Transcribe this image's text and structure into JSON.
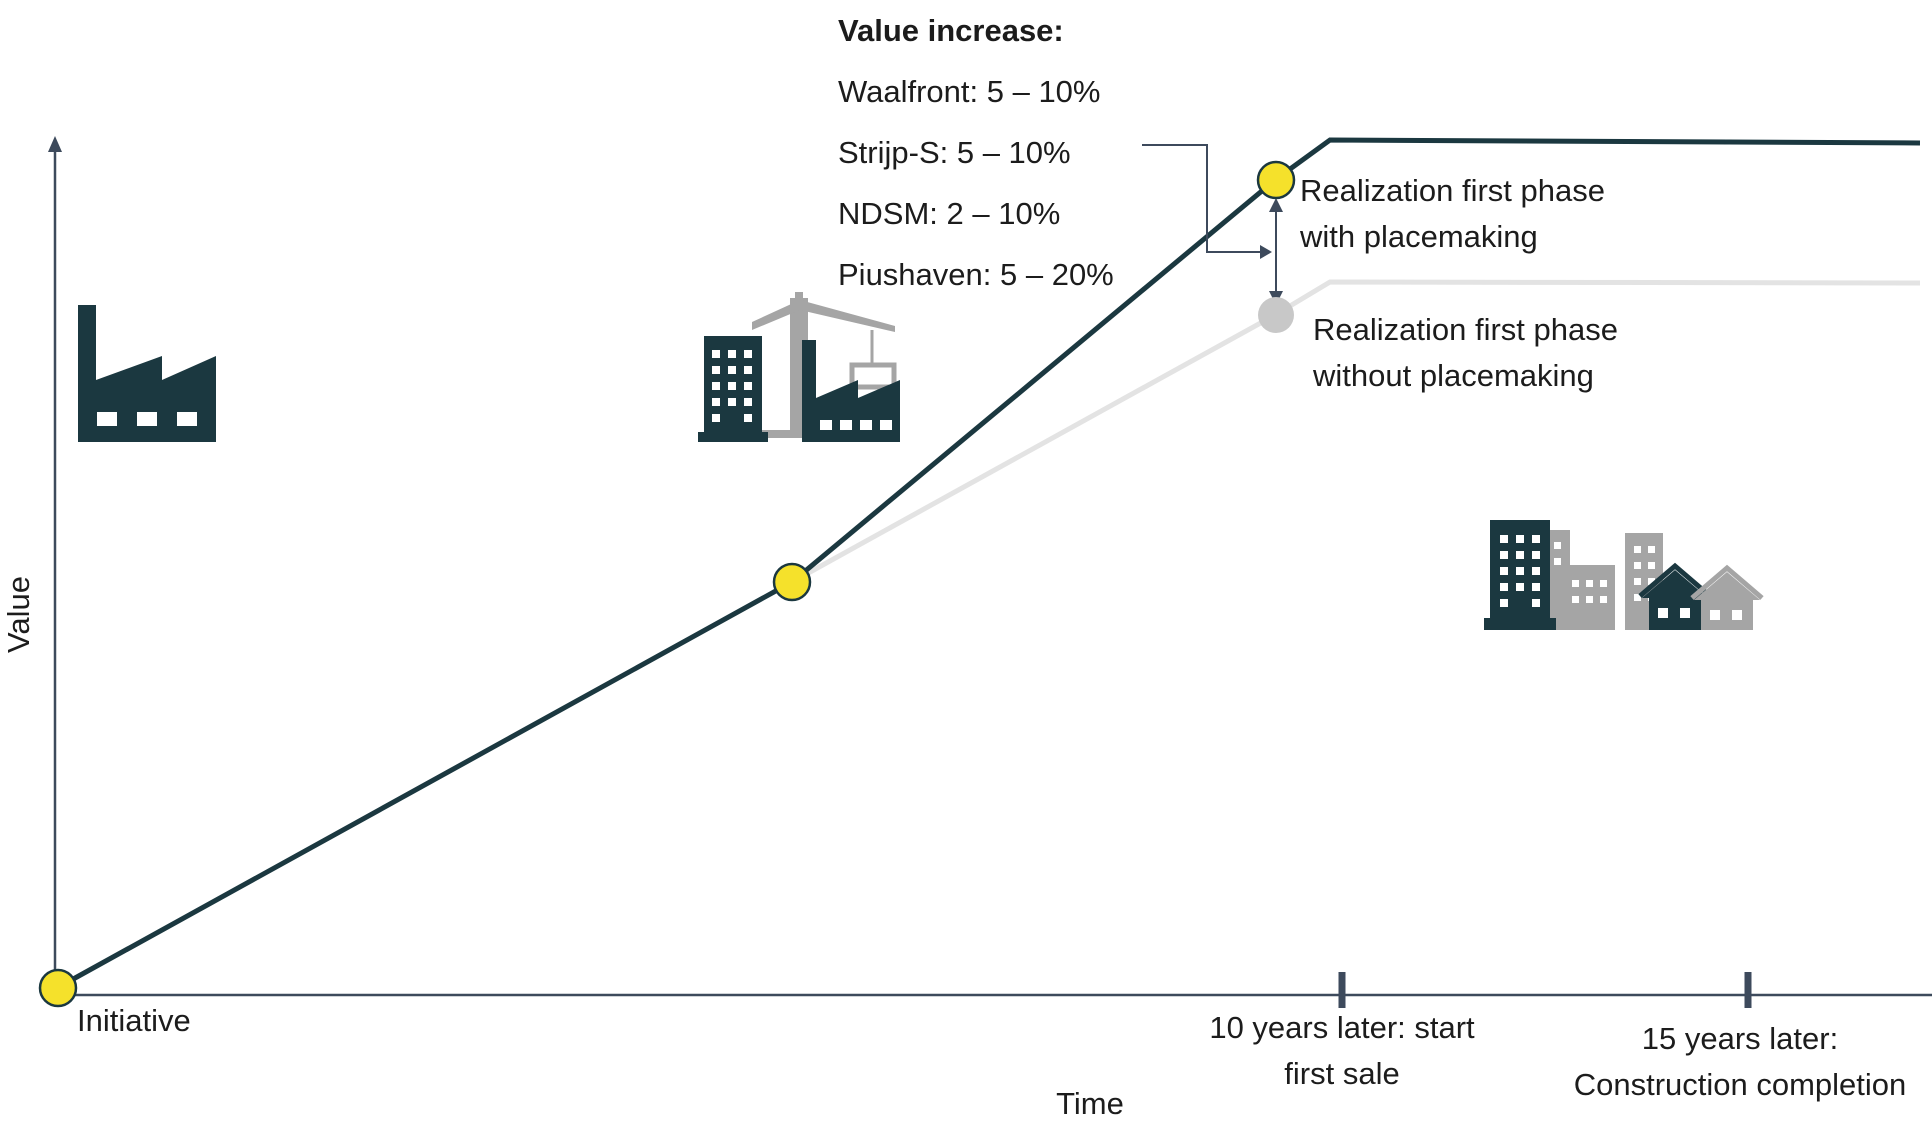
{
  "axes": {
    "y_label": "Value",
    "x_label": "Time",
    "ticks": [
      {
        "lines": [
          "10 years later: start",
          "first sale"
        ]
      },
      {
        "lines": [
          "15 years later:",
          "Construction completion"
        ]
      }
    ]
  },
  "start_label": "Initiative",
  "value_increase": {
    "title": "Value increase:",
    "items": [
      "Waalfront: 5 – 10%",
      "Strijp-S: 5 – 10%",
      "NDSM: 2 – 10%",
      "Piushaven: 5 – 20%"
    ]
  },
  "milestones": {
    "with": {
      "lines": [
        "Realization first phase",
        "with placemaking"
      ]
    },
    "without": {
      "lines": [
        "Realization first phase",
        "without placemaking"
      ]
    }
  },
  "icons": {
    "start": "factory-icon",
    "middle": "construction-crane-icon",
    "end": "city-buildings-icon"
  },
  "colors": {
    "with_placemaking_line": "#1b3840",
    "without_placemaking_line": "#e3e3e3",
    "milestone_marker": "#f5e12b",
    "without_marker": "#c8c8c8",
    "axis": "#3d4a5c",
    "icon_dark": "#1b3840",
    "icon_grey": "#a5a5a5"
  }
}
